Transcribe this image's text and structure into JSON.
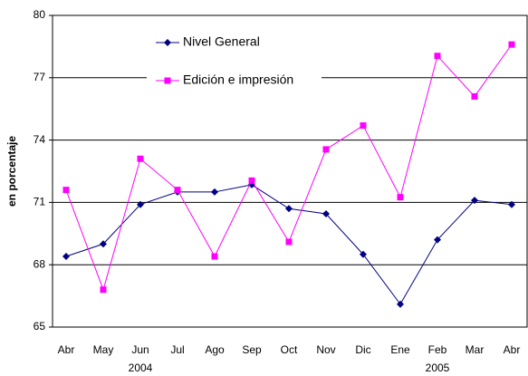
{
  "chart_data": {
    "type": "line",
    "y_label": "en porcentaje",
    "categories": [
      "Abr",
      "May",
      "Jun",
      "Jul",
      "Ago",
      "Sep",
      "Oct",
      "Nov",
      "Dic",
      "Ene",
      "Feb",
      "Mar",
      "Abr"
    ],
    "year_labels": [
      "2004",
      "2005"
    ],
    "series": [
      {
        "name": "Nivel General",
        "color": "#000080",
        "marker": "diamond",
        "values": [
          68.4,
          69.0,
          70.9,
          71.5,
          71.5,
          71.85,
          70.7,
          70.45,
          68.5,
          66.1,
          69.2,
          71.1,
          70.9
        ]
      },
      {
        "name": "Edición e impresión",
        "color": "#ff00ff",
        "marker": "square",
        "values": [
          71.6,
          66.8,
          73.1,
          71.6,
          68.4,
          72.05,
          69.1,
          73.55,
          74.7,
          71.25,
          78.05,
          76.1,
          78.6
        ]
      }
    ],
    "ylim": [
      65,
      80
    ],
    "yticks": [
      65,
      68,
      71,
      74,
      77,
      80
    ],
    "grid": true
  }
}
